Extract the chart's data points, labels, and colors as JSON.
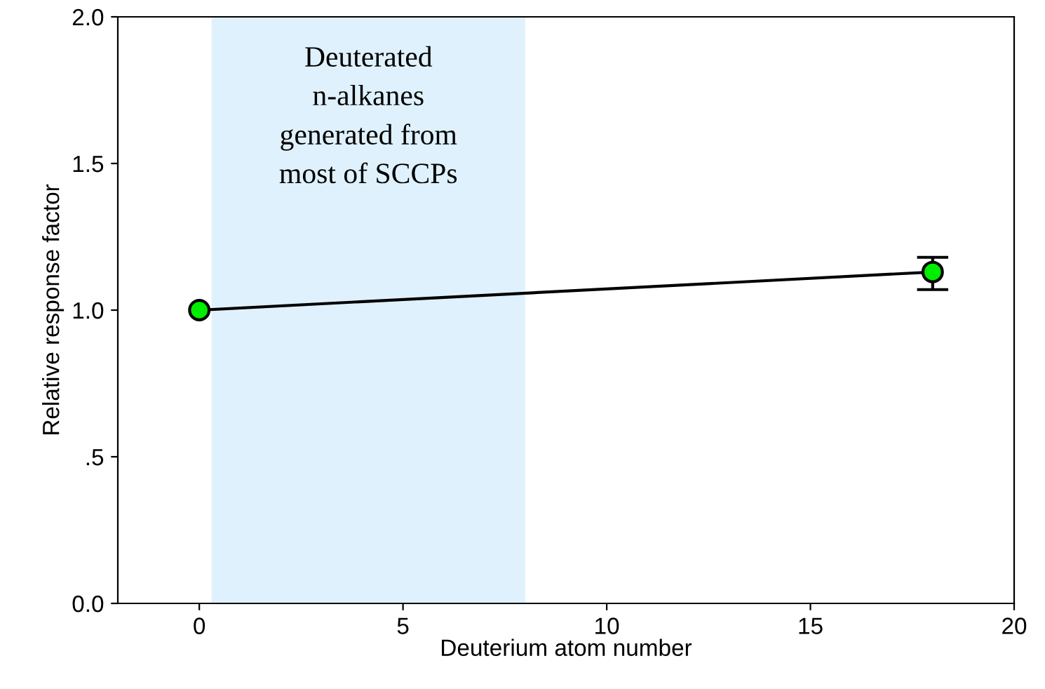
{
  "chart_data": {
    "type": "line",
    "xlabel": "Deuterium atom number",
    "ylabel": "Relative response factor",
    "x": [
      0,
      18
    ],
    "series": [
      {
        "color": "#00ee00",
        "values": [
          1.0,
          1.13
        ],
        "errors": [
          null,
          [
            1.07,
            1.18
          ]
        ]
      }
    ],
    "marker": "circle",
    "line_style": "solid",
    "xlim": [
      -2,
      20
    ],
    "xticks": [
      0,
      5,
      10,
      15,
      20
    ],
    "ylim": [
      0,
      2
    ],
    "yticks": [
      {
        "value": 0,
        "label": "0.0"
      },
      {
        "value": 0.5,
        "label": ".5"
      },
      {
        "value": 1.0,
        "label": "1.0"
      },
      {
        "value": 1.5,
        "label": "1.5"
      },
      {
        "value": 2.0,
        "label": "2.0"
      }
    ],
    "bands": [
      {
        "axis": "x",
        "from": 0.3,
        "to": 8.0,
        "label": "Deuterated\nn-alkanes\ngenerated from\nmost of SCCPs",
        "color": "#dff1fc"
      }
    ],
    "grid": false,
    "legend": false
  }
}
